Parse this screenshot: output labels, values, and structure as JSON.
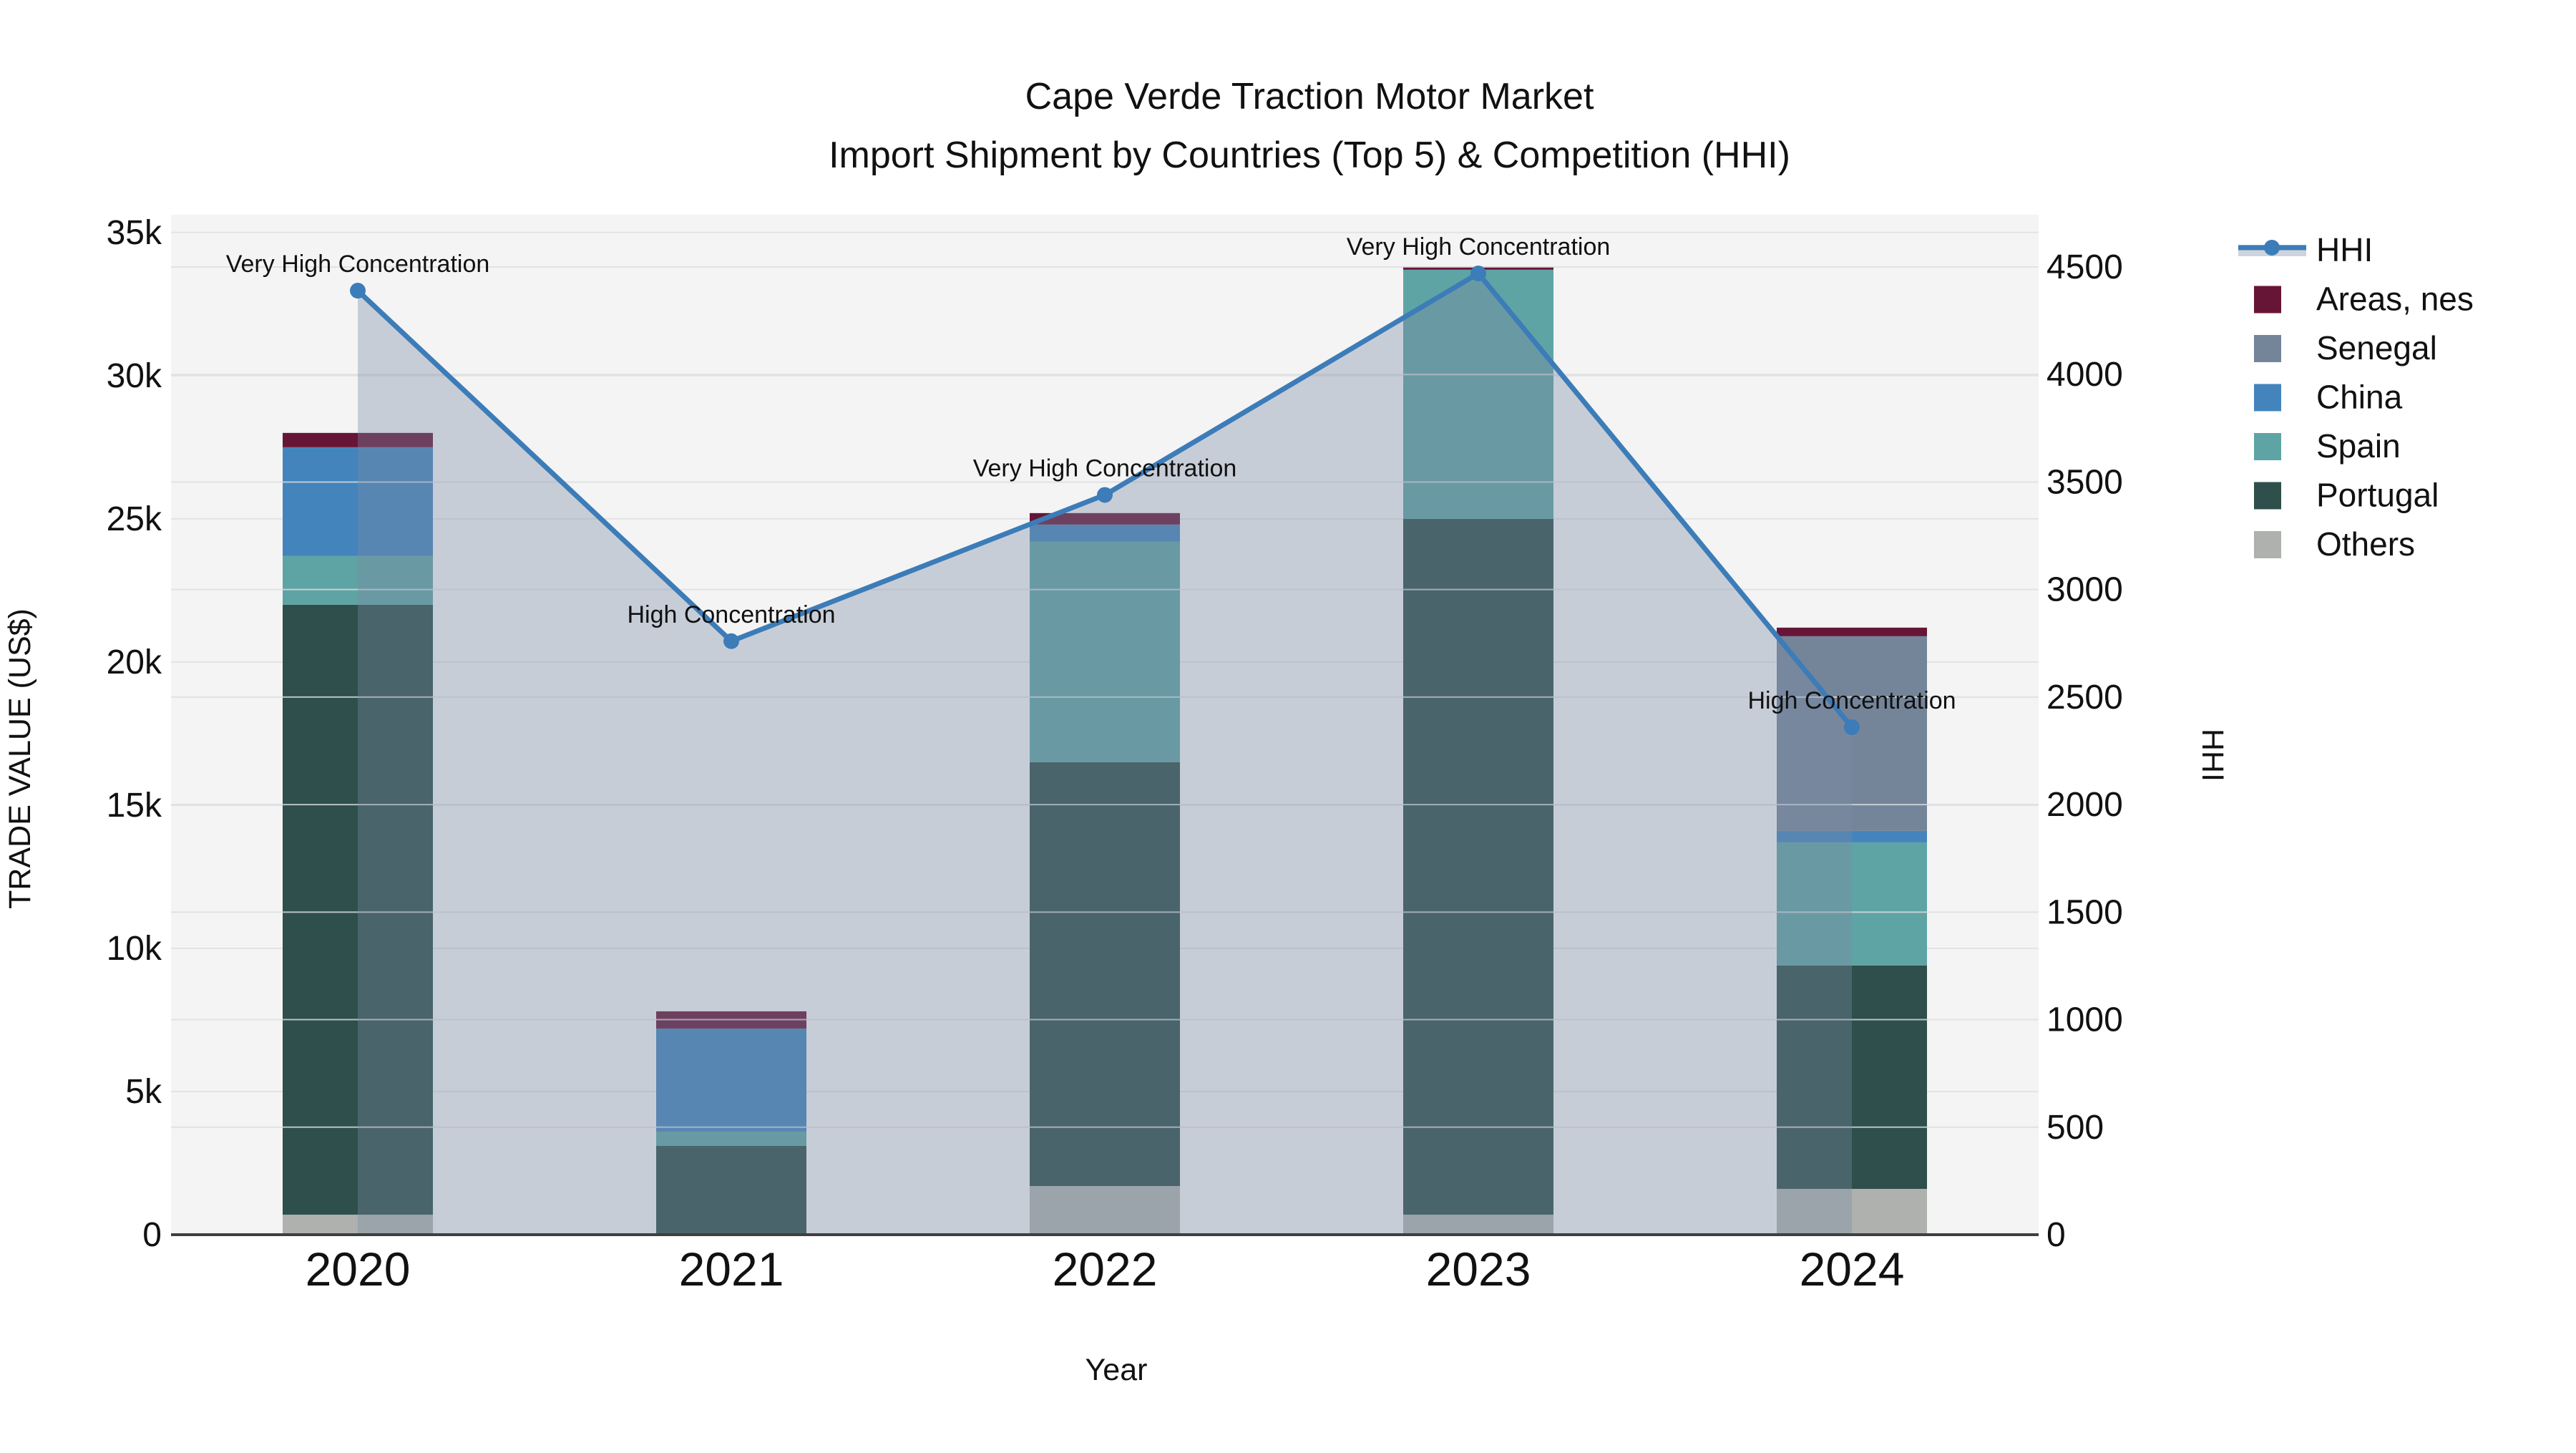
{
  "title": {
    "line1": "Cape Verde Traction Motor Market",
    "line2": "Import Shipment by Countries (Top 5) & Competition (HHI)"
  },
  "legend": {
    "items": [
      {
        "label": "HHI",
        "type": "line",
        "color": "#3c7cb8"
      },
      {
        "label": "Areas, nes",
        "type": "swatch",
        "color": "#671537"
      },
      {
        "label": "Senegal",
        "type": "swatch",
        "color": "#74859a"
      },
      {
        "label": "China",
        "type": "swatch",
        "color": "#4484bc"
      },
      {
        "label": "Spain",
        "type": "swatch",
        "color": "#5fa4a4"
      },
      {
        "label": "Portugal",
        "type": "swatch",
        "color": "#2e4f4b"
      },
      {
        "label": "Others",
        "type": "swatch",
        "color": "#aeb1ae"
      }
    ]
  },
  "chart_data": {
    "type": "bar+line",
    "title": "Cape Verde Traction Motor Market — Import Shipment by Countries (Top 5) & Competition (HHI)",
    "categories": [
      "2020",
      "2021",
      "2022",
      "2023",
      "2024"
    ],
    "series": [
      {
        "name": "Others",
        "color": "#aeb1ae",
        "values": [
          700,
          0,
          1700,
          700,
          1600
        ]
      },
      {
        "name": "Portugal",
        "color": "#2e4f4b",
        "values": [
          21300,
          3100,
          14800,
          24300,
          7800
        ]
      },
      {
        "name": "Spain",
        "color": "#5fa4a4",
        "values": [
          1700,
          500,
          7700,
          8700,
          4300
        ]
      },
      {
        "name": "China",
        "color": "#4484bc",
        "values": [
          3800,
          3600,
          600,
          0,
          400
        ]
      },
      {
        "name": "Senegal",
        "color": "#74859a",
        "values": [
          0,
          0,
          0,
          0,
          6800
        ]
      },
      {
        "name": "Areas, nes",
        "color": "#671537",
        "values": [
          500,
          600,
          400,
          100,
          300
        ]
      }
    ],
    "bar_totals": [
      28000,
      7800,
      25200,
      33800,
      21200
    ],
    "line_series": {
      "name": "HHI",
      "color": "#3c7cb8",
      "area_fill": "rgba(122,139,166,0.37)",
      "values": [
        4390,
        2760,
        3440,
        4470,
        2360
      ]
    },
    "annotations": [
      "Very High Concentration",
      "High Concentration",
      "Very High Concentration",
      "Very High Concentration",
      "High Concentration"
    ],
    "y_left": {
      "title": "TRADE VALUE (US$)",
      "max": 35000,
      "tick_step": 5000,
      "ticks": [
        "0",
        "5k",
        "10k",
        "15k",
        "20k",
        "25k",
        "30k",
        "35k"
      ]
    },
    "y_right": {
      "title": "HHI",
      "max": 4500,
      "tick_step": 500,
      "ticks": [
        "0",
        "500",
        "1000",
        "1500",
        "2000",
        "2500",
        "3000",
        "3500",
        "4000",
        "4500"
      ]
    },
    "x": {
      "title": "Year"
    },
    "layout_hints": {
      "plot_bg": "#f4f4f4",
      "grid": "#e3e3e3",
      "axis_line": "#3f3f3f",
      "legend_position": "right"
    }
  }
}
